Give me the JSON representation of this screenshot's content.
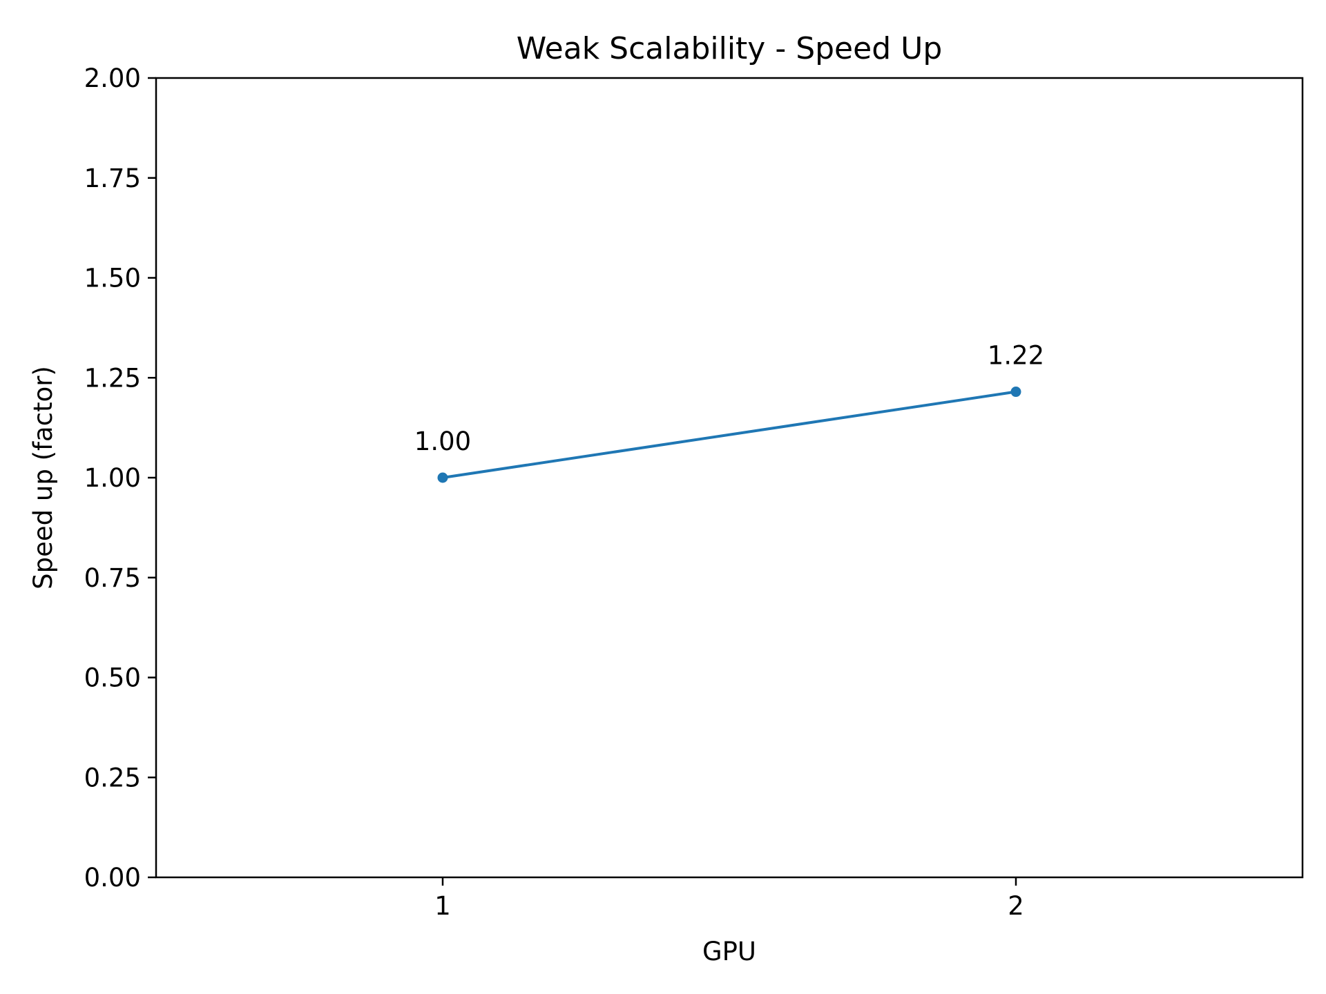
{
  "chart_data": {
    "type": "line",
    "title": "Weak Scalability - Speed Up",
    "xlabel": "GPU",
    "ylabel": "Speed up (factor)",
    "x": [
      1,
      2
    ],
    "xlim": [
      0.5,
      2.5
    ],
    "ylim": [
      0,
      2
    ],
    "xticks": [
      1,
      2
    ],
    "xtick_labels": [
      "1",
      "2"
    ],
    "yticks": [
      0,
      0.25,
      0.5,
      0.75,
      1.0,
      1.25,
      1.5,
      1.75,
      2.0
    ],
    "ytick_labels": [
      "0.00",
      "0.25",
      "0.50",
      "0.75",
      "1.00",
      "1.25",
      "1.50",
      "1.75",
      "2.00"
    ],
    "grid": false,
    "legend": "none",
    "series": [
      {
        "values": [
          1.0,
          1.215
        ],
        "labels": [
          "1.00",
          "1.22"
        ],
        "color": "#1f77b4",
        "marker": "circle"
      }
    ]
  }
}
